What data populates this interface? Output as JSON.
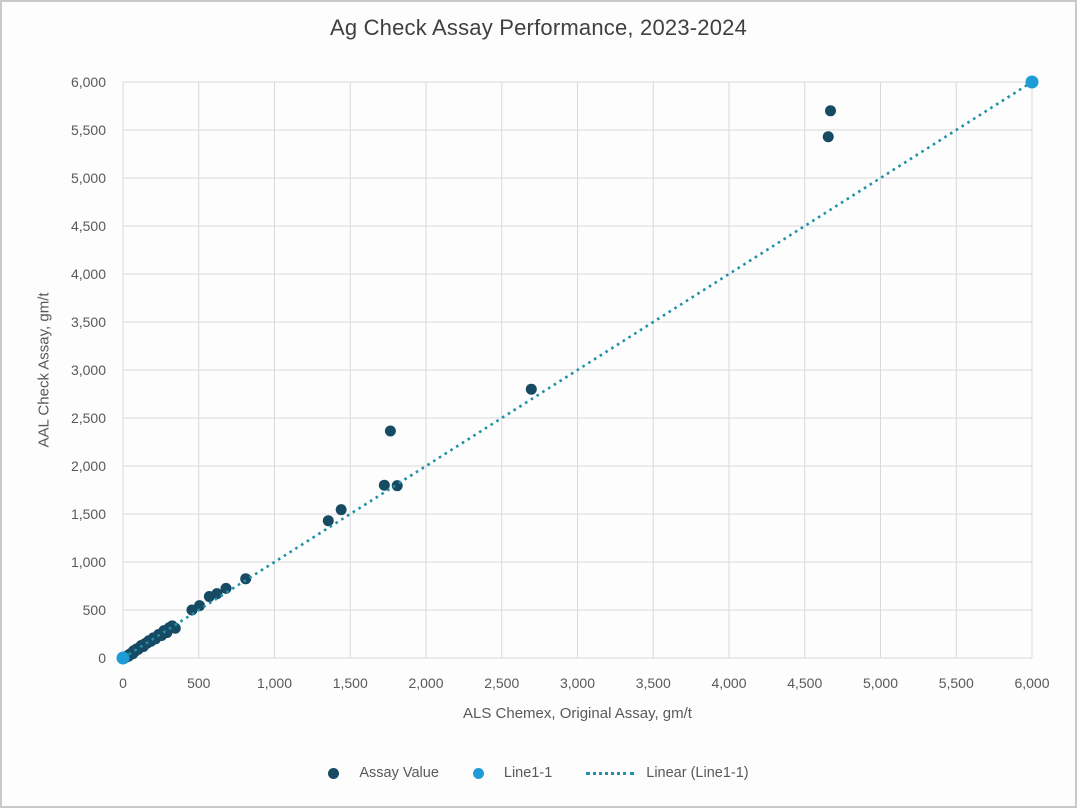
{
  "chart_data": {
    "type": "scatter",
    "title": "Ag Check Assay Performance, 2023-2024",
    "xlabel": "ALS Chemex, Original Assay, gm/t",
    "ylabel": "AAL Check Assay, gm/t",
    "xlim": [
      0,
      6000
    ],
    "ylim": [
      0,
      6000
    ],
    "grid": true,
    "legend_position": "bottom",
    "x_ticks": {
      "values": [
        0,
        500,
        1000,
        1500,
        2000,
        2500,
        3000,
        3500,
        4000,
        4500,
        5000,
        5500,
        6000
      ],
      "labels": [
        "0",
        "500",
        "1,000",
        "1,500",
        "2,000",
        "2,500",
        "3,000",
        "3,500",
        "4,000",
        "4,500",
        "5,000",
        "5,500",
        "6,000"
      ]
    },
    "y_ticks": {
      "values": [
        0,
        500,
        1000,
        1500,
        2000,
        2500,
        3000,
        3500,
        4000,
        4500,
        5000,
        5500,
        6000
      ],
      "labels": [
        "0",
        "500",
        "1,000",
        "1,500",
        "2,000",
        "2,500",
        "3,000",
        "3,500",
        "4,000",
        "4,500",
        "5,000",
        "5,500",
        "6,000"
      ]
    },
    "series": [
      {
        "name": "Assay Value",
        "kind": "scatter",
        "color": "#174a63",
        "marker_radius": 5.5,
        "points": [
          [
            8,
            2
          ],
          [
            15,
            12
          ],
          [
            22,
            8
          ],
          [
            30,
            25
          ],
          [
            38,
            20
          ],
          [
            45,
            40
          ],
          [
            55,
            50
          ],
          [
            65,
            45
          ],
          [
            70,
            75
          ],
          [
            80,
            70
          ],
          [
            90,
            95
          ],
          [
            100,
            90
          ],
          [
            110,
            105
          ],
          [
            120,
            130
          ],
          [
            135,
            120
          ],
          [
            145,
            150
          ],
          [
            160,
            155
          ],
          [
            170,
            180
          ],
          [
            185,
            175
          ],
          [
            200,
            210
          ],
          [
            215,
            200
          ],
          [
            235,
            245
          ],
          [
            255,
            235
          ],
          [
            270,
            285
          ],
          [
            290,
            265
          ],
          [
            305,
            315
          ],
          [
            325,
            335
          ],
          [
            345,
            310
          ],
          [
            455,
            500
          ],
          [
            505,
            545
          ],
          [
            570,
            640
          ],
          [
            620,
            670
          ],
          [
            680,
            725
          ],
          [
            810,
            825
          ],
          [
            1355,
            1430
          ],
          [
            1440,
            1545
          ],
          [
            1725,
            1800
          ],
          [
            1810,
            1795
          ],
          [
            1765,
            2365
          ],
          [
            2695,
            2800
          ],
          [
            4655,
            5430
          ],
          [
            4670,
            5700
          ]
        ]
      },
      {
        "name": "Linear (Line1-1)",
        "kind": "line",
        "line_style": "dotted",
        "color": "#1f90a6",
        "points": [
          [
            0,
            0
          ],
          [
            6000,
            6000
          ]
        ]
      },
      {
        "name": "Line1-1",
        "kind": "scatter",
        "color": "#1e9cd6",
        "marker_radius": 6.5,
        "points": [
          [
            0,
            0
          ],
          [
            6000,
            6000
          ]
        ]
      }
    ],
    "legend": {
      "items": [
        {
          "label": "Assay Value",
          "swatch": "dot",
          "color": "#174a63"
        },
        {
          "label": "Line1-1",
          "swatch": "dot",
          "color": "#1e9cd6"
        },
        {
          "label": "Linear (Line1-1)",
          "swatch": "dotted-line",
          "color": "#1f90a6"
        }
      ]
    }
  },
  "style": {
    "grid_color": "#d9d9d9",
    "tick_label_color": "#595959",
    "axis_title_color": "#595959",
    "title_color": "#404040",
    "border_color": "#c9c9c9",
    "background": "#fdfdfd"
  }
}
